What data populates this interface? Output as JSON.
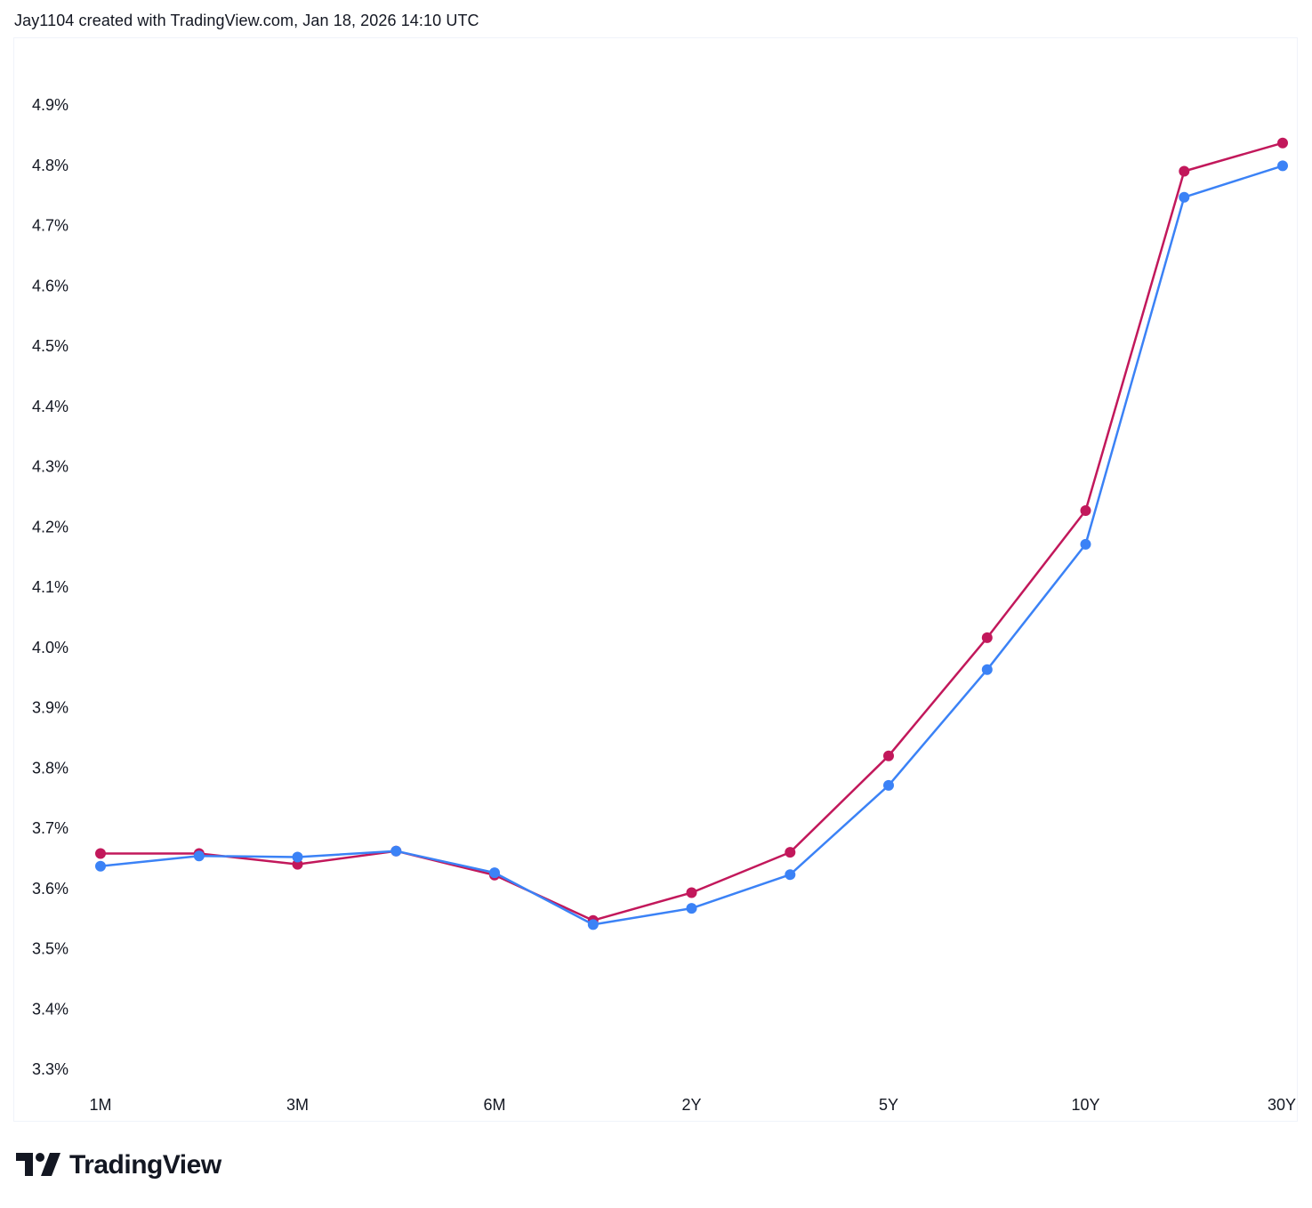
{
  "caption": "Jay1104 created with TradingView.com, Jan 18, 2026 14:10 UTC",
  "brand": {
    "name": "TradingView"
  },
  "colors": {
    "series_a": "#c2185b",
    "series_b": "#3b82f6",
    "text": "#131722",
    "frame": "#f0f3fa"
  },
  "chart_data": {
    "type": "line",
    "title": "",
    "xlabel": "",
    "ylabel": "",
    "ylim": [
      3.25,
      4.98
    ],
    "yticks": [
      "3.3%",
      "3.4%",
      "3.5%",
      "3.6%",
      "3.7%",
      "3.8%",
      "3.9%",
      "4.0%",
      "4.1%",
      "4.2%",
      "4.3%",
      "4.4%",
      "4.5%",
      "4.6%",
      "4.7%",
      "4.8%",
      "4.9%"
    ],
    "ytick_values": [
      3.3,
      3.4,
      3.5,
      3.6,
      3.7,
      3.8,
      3.9,
      4.0,
      4.1,
      4.2,
      4.3,
      4.4,
      4.5,
      4.6,
      4.7,
      4.8,
      4.9
    ],
    "xtick_labels": [
      "1M",
      "3M",
      "6M",
      "2Y",
      "5Y",
      "10Y",
      "30Y"
    ],
    "xtick_indices": [
      0,
      2,
      4,
      6,
      8,
      10,
      12
    ],
    "grid": false,
    "legend": "none",
    "series": [
      {
        "color": "#c2185b",
        "values": [
          3.658,
          3.658,
          3.64,
          3.662,
          3.622,
          3.547,
          3.593,
          3.66,
          3.82,
          4.016,
          4.227,
          4.79,
          4.837
        ]
      },
      {
        "color": "#3b82f6",
        "values": [
          3.637,
          3.654,
          3.652,
          3.662,
          3.626,
          3.54,
          3.567,
          3.623,
          3.771,
          3.963,
          4.171,
          4.747,
          4.799
        ]
      }
    ]
  }
}
